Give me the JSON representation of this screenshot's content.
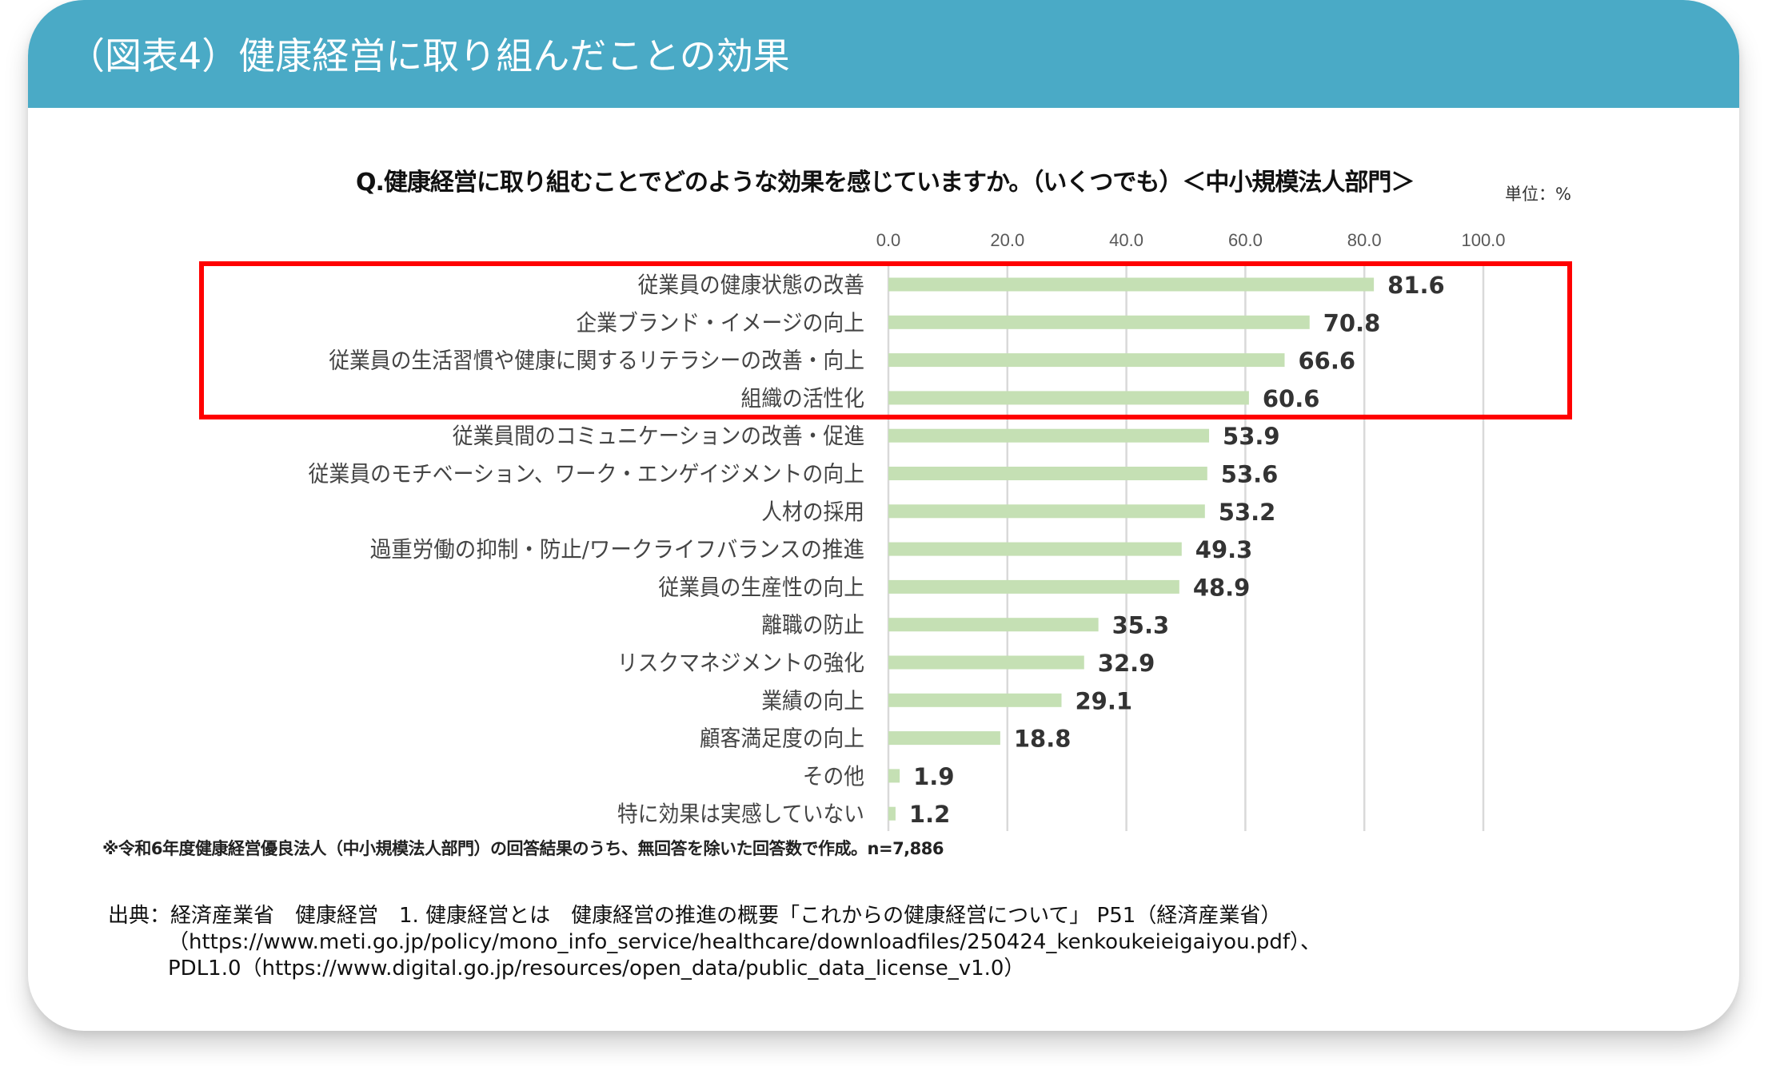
{
  "header": {
    "title": "（図表4）健康経営に取り組んだことの効果"
  },
  "chart_data": {
    "type": "bar",
    "orientation": "horizontal",
    "title": "Q.健康経営に取り組むことでどのような効果を感じていますか。（いくつでも）＜中小規模法人部門＞",
    "unit_label": "単位：%",
    "xlabel": "",
    "ylabel": "",
    "xlim": [
      0,
      100
    ],
    "x_ticks": [
      "0.0",
      "20.0",
      "40.0",
      "60.0",
      "80.0",
      "100.0"
    ],
    "x_tick_values": [
      0,
      20,
      40,
      60,
      80,
      100
    ],
    "grid": true,
    "bar_color": "#c5e0b4",
    "highlight_color": "#ff0000",
    "highlighted_categories": [
      0,
      1,
      2,
      3
    ],
    "categories": [
      "従業員の健康状態の改善",
      "企業ブランド・イメージの向上",
      "従業員の生活習慣や健康に関するリテラシーの改善・向上",
      "組織の活性化",
      "従業員間のコミュニケーションの改善・促進",
      "従業員のモチベーション、ワーク・エンゲイジメントの向上",
      "人材の採用",
      "過重労働の抑制・防止/ワークライフバランスの推進",
      "従業員の生産性の向上",
      "離職の防止",
      "リスクマネジメントの強化",
      "業績の向上",
      "顧客満足度の向上",
      "その他",
      "特に効果は実感していない"
    ],
    "values": [
      81.6,
      70.8,
      66.6,
      60.6,
      53.9,
      53.6,
      53.2,
      49.3,
      48.9,
      35.3,
      32.9,
      29.1,
      18.8,
      1.9,
      1.2
    ],
    "value_labels": [
      "81.6",
      "70.8",
      "66.6",
      "60.6",
      "53.9",
      "53.6",
      "53.2",
      "49.3",
      "48.9",
      "35.3",
      "32.9",
      "29.1",
      "18.8",
      "1.9",
      "1.2"
    ]
  },
  "note": "※令和6年度健康経営優良法人（中小規模法人部門）の回答結果のうち、無回答を除いた回答数で作成。n=7,886",
  "source": {
    "line1": "出典：経済産業省　健康経営　1. 健康経営とは　健康経営の推進の概要「これからの健康経営について」 P51（経済産業省）",
    "line2": "（https://www.meti.go.jp/policy/mono_info_service/healthcare/downloadfiles/250424_kenkoukeieigaiyou.pdf）、",
    "line3": "PDL1.0（https://www.digital.go.jp/resources/open_data/public_data_license_v1.0）"
  }
}
